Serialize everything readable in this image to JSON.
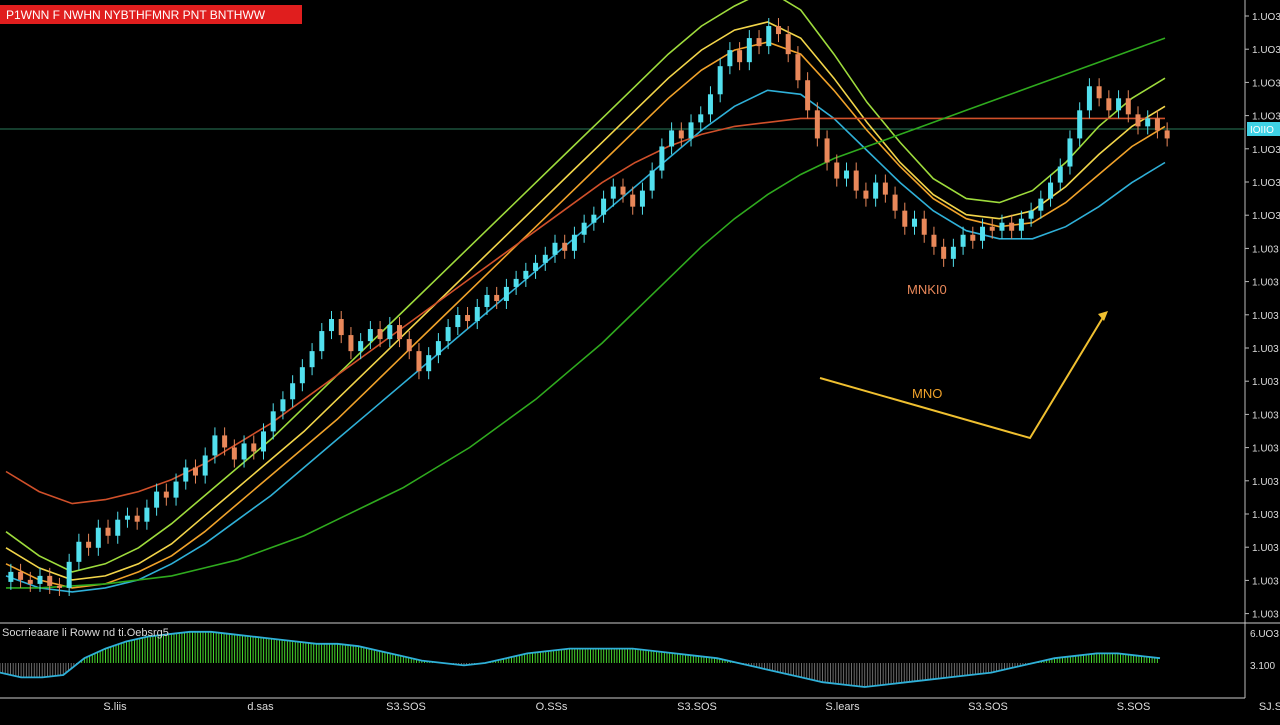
{
  "header": {
    "title": "P1WNN F NWHN NYBTHFMNR PNT BNTHWW"
  },
  "indicator_label": "Socrrieaare li Roww nd ti.Oebsrg5",
  "price_label": "MNKI0",
  "pattern_label": "MNO",
  "current_price_label": "IOIIO",
  "y_tick_labels": [
    "1.UO3",
    "1.UO3",
    "1.UO3",
    "1.UO3",
    "1.UO3",
    "1.UO3",
    "1.UO3",
    "1.U03",
    "1.U03",
    "1.U03",
    "1.U03",
    "1.U03",
    "1.U03",
    "1.U03",
    "1.U03",
    "1.U03",
    "1.U03",
    "1.U03",
    "1.U03"
  ],
  "osc_tick_labels": [
    "6.UO3",
    "3.100"
  ],
  "x_tick_labels": [
    "S.liis",
    "d.sas",
    "S3.SOS",
    "O.SSs",
    "S3.SOS",
    "S.lears",
    "S3.SOS",
    "S.SOS",
    "SJ.SOO"
  ],
  "colors": {
    "background": "#000000",
    "bull_candle": "#52e0ee",
    "bear_candle": "#e9885a",
    "ma_yellow": "#f2d54a",
    "ma_orange": "#f0a22a",
    "ma_lime": "#9edb3c",
    "ma_cyan": "#2fb0d8",
    "ma_red": "#d0502a",
    "ma_green": "#2faa1e",
    "header_bg": "#e01e1e",
    "osc_bar": "#46d42a"
  },
  "chart_data": {
    "type": "candlestick",
    "title": "P1WNN F NWHN NYBTHFMNR PNT BNTHWW",
    "y_axis_position": "right",
    "grid": false,
    "candles": [
      {
        "o": 5,
        "c": 10
      },
      {
        "o": 10,
        "c": 6
      },
      {
        "o": 6,
        "c": 4
      },
      {
        "o": 4,
        "c": 8
      },
      {
        "o": 8,
        "c": 3
      },
      {
        "o": 3,
        "c": 2
      },
      {
        "o": 2,
        "c": 15
      },
      {
        "o": 15,
        "c": 25
      },
      {
        "o": 25,
        "c": 22
      },
      {
        "o": 22,
        "c": 32
      },
      {
        "o": 32,
        "c": 28
      },
      {
        "o": 28,
        "c": 36
      },
      {
        "o": 36,
        "c": 38
      },
      {
        "o": 38,
        "c": 35
      },
      {
        "o": 35,
        "c": 42
      },
      {
        "o": 42,
        "c": 50
      },
      {
        "o": 50,
        "c": 47
      },
      {
        "o": 47,
        "c": 55
      },
      {
        "o": 55,
        "c": 62
      },
      {
        "o": 62,
        "c": 58
      },
      {
        "o": 58,
        "c": 68
      },
      {
        "o": 68,
        "c": 78
      },
      {
        "o": 78,
        "c": 72
      },
      {
        "o": 72,
        "c": 66
      },
      {
        "o": 66,
        "c": 74
      },
      {
        "o": 74,
        "c": 70
      },
      {
        "o": 70,
        "c": 80
      },
      {
        "o": 80,
        "c": 90
      },
      {
        "o": 90,
        "c": 96
      },
      {
        "o": 96,
        "c": 104
      },
      {
        "o": 104,
        "c": 112
      },
      {
        "o": 112,
        "c": 120
      },
      {
        "o": 120,
        "c": 130
      },
      {
        "o": 130,
        "c": 136
      },
      {
        "o": 136,
        "c": 128
      },
      {
        "o": 128,
        "c": 120
      },
      {
        "o": 120,
        "c": 125
      },
      {
        "o": 125,
        "c": 131
      },
      {
        "o": 131,
        "c": 126
      },
      {
        "o": 126,
        "c": 133
      },
      {
        "o": 133,
        "c": 126
      },
      {
        "o": 126,
        "c": 120
      },
      {
        "o": 120,
        "c": 110
      },
      {
        "o": 110,
        "c": 118
      },
      {
        "o": 118,
        "c": 125
      },
      {
        "o": 125,
        "c": 132
      },
      {
        "o": 132,
        "c": 138
      },
      {
        "o": 138,
        "c": 135
      },
      {
        "o": 135,
        "c": 142
      },
      {
        "o": 142,
        "c": 148
      },
      {
        "o": 148,
        "c": 145
      },
      {
        "o": 145,
        "c": 152
      },
      {
        "o": 152,
        "c": 156
      },
      {
        "o": 156,
        "c": 160
      },
      {
        "o": 160,
        "c": 164
      },
      {
        "o": 164,
        "c": 168
      },
      {
        "o": 168,
        "c": 174
      },
      {
        "o": 174,
        "c": 170
      },
      {
        "o": 170,
        "c": 178
      },
      {
        "o": 178,
        "c": 184
      },
      {
        "o": 184,
        "c": 188
      },
      {
        "o": 188,
        "c": 196
      },
      {
        "o": 196,
        "c": 202
      },
      {
        "o": 202,
        "c": 198
      },
      {
        "o": 198,
        "c": 192
      },
      {
        "o": 192,
        "c": 200
      },
      {
        "o": 200,
        "c": 210
      },
      {
        "o": 210,
        "c": 222
      },
      {
        "o": 222,
        "c": 230
      },
      {
        "o": 230,
        "c": 226
      },
      {
        "o": 226,
        "c": 234
      },
      {
        "o": 234,
        "c": 238
      },
      {
        "o": 238,
        "c": 248
      },
      {
        "o": 248,
        "c": 262
      },
      {
        "o": 262,
        "c": 270
      },
      {
        "o": 270,
        "c": 264
      },
      {
        "o": 264,
        "c": 276
      },
      {
        "o": 276,
        "c": 272
      },
      {
        "o": 272,
        "c": 282
      },
      {
        "o": 282,
        "c": 278
      },
      {
        "o": 278,
        "c": 268
      },
      {
        "o": 268,
        "c": 255
      },
      {
        "o": 255,
        "c": 240
      },
      {
        "o": 240,
        "c": 226
      },
      {
        "o": 226,
        "c": 214
      },
      {
        "o": 214,
        "c": 206
      },
      {
        "o": 206,
        "c": 210
      },
      {
        "o": 210,
        "c": 200
      },
      {
        "o": 200,
        "c": 196
      },
      {
        "o": 196,
        "c": 204
      },
      {
        "o": 204,
        "c": 198
      },
      {
        "o": 198,
        "c": 190
      },
      {
        "o": 190,
        "c": 182
      },
      {
        "o": 182,
        "c": 186
      },
      {
        "o": 186,
        "c": 178
      },
      {
        "o": 178,
        "c": 172
      },
      {
        "o": 172,
        "c": 166
      },
      {
        "o": 166,
        "c": 172
      },
      {
        "o": 172,
        "c": 178
      },
      {
        "o": 178,
        "c": 175
      },
      {
        "o": 175,
        "c": 182
      },
      {
        "o": 182,
        "c": 180
      },
      {
        "o": 180,
        "c": 184
      },
      {
        "o": 184,
        "c": 180
      },
      {
        "o": 180,
        "c": 186
      },
      {
        "o": 186,
        "c": 190
      },
      {
        "o": 190,
        "c": 196
      },
      {
        "o": 196,
        "c": 204
      },
      {
        "o": 204,
        "c": 212
      },
      {
        "o": 212,
        "c": 226
      },
      {
        "o": 226,
        "c": 240
      },
      {
        "o": 240,
        "c": 252
      },
      {
        "o": 252,
        "c": 246
      },
      {
        "o": 246,
        "c": 240
      },
      {
        "o": 240,
        "c": 246
      },
      {
        "o": 246,
        "c": 238
      },
      {
        "o": 238,
        "c": 232
      },
      {
        "o": 232,
        "c": 236
      },
      {
        "o": 236,
        "c": 230
      },
      {
        "o": 230,
        "c": 226
      }
    ],
    "moving_averages": [
      {
        "color": "ma_lime",
        "values": [
          30,
          18,
          10,
          14,
          22,
          34,
          48,
          62,
          76,
          92,
          108,
          124,
          140,
          156,
          172,
          188,
          204,
          220,
          236,
          252,
          268,
          282,
          292,
          300,
          290,
          268,
          244,
          224,
          206,
          196,
          194,
          200,
          214,
          232,
          246,
          256
        ]
      },
      {
        "color": "ma_yellow",
        "values": [
          22,
          12,
          6,
          8,
          14,
          24,
          38,
          52,
          66,
          80,
          96,
          112,
          128,
          144,
          160,
          176,
          192,
          208,
          224,
          240,
          256,
          270,
          280,
          284,
          276,
          256,
          234,
          214,
          198,
          188,
          186,
          190,
          202,
          218,
          232,
          242
        ]
      },
      {
        "color": "ma_orange",
        "values": [
          14,
          6,
          2,
          4,
          10,
          18,
          30,
          44,
          58,
          72,
          86,
          102,
          118,
          134,
          150,
          166,
          182,
          198,
          214,
          230,
          246,
          260,
          270,
          274,
          268,
          250,
          230,
          212,
          196,
          186,
          182,
          184,
          194,
          208,
          222,
          232
        ]
      },
      {
        "color": "ma_cyan",
        "values": [
          8,
          2,
          0,
          2,
          6,
          14,
          24,
          36,
          48,
          62,
          76,
          90,
          104,
          118,
          132,
          146,
          160,
          174,
          188,
          202,
          216,
          230,
          242,
          250,
          248,
          236,
          220,
          204,
          190,
          180,
          176,
          176,
          182,
          192,
          204,
          214
        ]
      },
      {
        "color": "ma_red",
        "values": [
          60,
          50,
          44,
          46,
          50,
          56,
          64,
          74,
          84,
          96,
          108,
          120,
          132,
          144,
          156,
          168,
          180,
          192,
          204,
          214,
          222,
          228,
          232,
          234,
          236,
          236,
          236,
          236,
          236,
          236,
          236,
          236,
          236,
          236,
          236,
          236
        ]
      },
      {
        "color": "ma_green",
        "values": [
          2,
          2,
          3,
          4,
          6,
          8,
          12,
          16,
          22,
          28,
          36,
          44,
          52,
          62,
          72,
          84,
          96,
          110,
          124,
          140,
          156,
          172,
          186,
          198,
          208,
          216,
          222,
          228,
          234,
          240,
          246,
          252,
          258,
          264,
          270,
          276
        ]
      }
    ],
    "oscillator": {
      "values": [
        -4,
        -6,
        -6,
        -5,
        2,
        6,
        9,
        11,
        12,
        13,
        13,
        12,
        11,
        10,
        9,
        8,
        8,
        7,
        5,
        3,
        1,
        0,
        -1,
        0,
        2,
        4,
        5,
        6,
        6,
        6,
        6,
        5,
        4,
        3,
        2,
        0,
        -2,
        -4,
        -6,
        -8,
        -9,
        -10,
        -9,
        -8,
        -7,
        -6,
        -5,
        -4,
        -2,
        0,
        2,
        3,
        4,
        4,
        3,
        2
      ]
    }
  }
}
